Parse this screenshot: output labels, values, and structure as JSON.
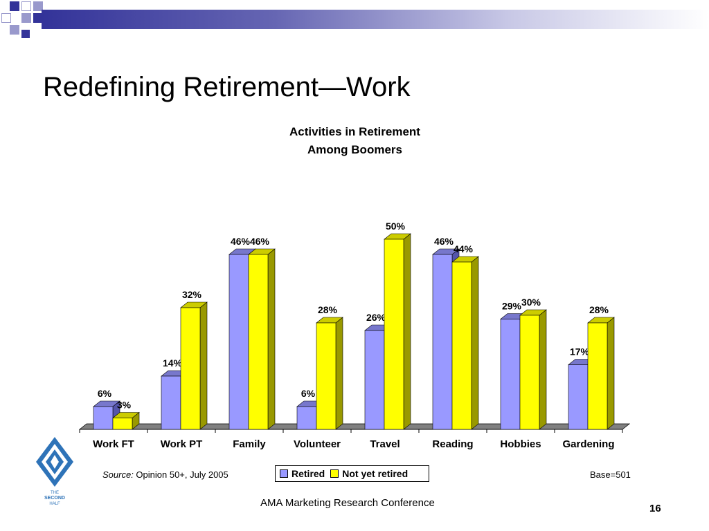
{
  "slide": {
    "title": "Redefining Retirement—Work",
    "footer": "AMA Marketing Research Conference",
    "page_number": "16",
    "source_label": "Source:",
    "source_text": " Opinion 50+, July 2005",
    "base_note": "Base=501",
    "logo_text": [
      "THE",
      "SECOND",
      "HALF"
    ]
  },
  "colors": {
    "retired": "#9999ff",
    "not_yet_retired": "#ffff00",
    "floor": "#808080",
    "accent": "#333399"
  },
  "chart_data": {
    "type": "bar",
    "title": [
      "Activities in Retirement",
      "Among Boomers"
    ],
    "categories": [
      "Work FT",
      "Work PT",
      "Family",
      "Volunteer",
      "Travel",
      "Reading",
      "Hobbies",
      "Gardening"
    ],
    "series": [
      {
        "name": "Retired",
        "values": [
          6,
          14,
          46,
          6,
          26,
          46,
          29,
          17
        ],
        "labels": [
          "6%",
          "14%",
          "46%",
          "6%",
          "26%",
          "46%",
          "29%",
          "17%"
        ]
      },
      {
        "name": "Not yet retired",
        "values": [
          3,
          32,
          46,
          28,
          50,
          44,
          30,
          28
        ],
        "labels": [
          "3%",
          "32%",
          "46%",
          "28%",
          "50%",
          "44%",
          "30%",
          "28%"
        ]
      }
    ],
    "ylim": [
      0,
      50
    ],
    "grid": false,
    "legend": "bottom"
  }
}
